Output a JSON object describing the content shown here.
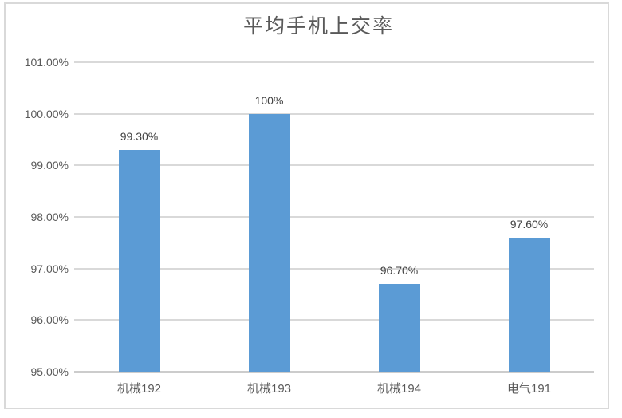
{
  "chart": {
    "title": "平均手机上交率"
  },
  "chart_data": {
    "type": "bar",
    "title": "平均手机上交率",
    "categories": [
      "机械192",
      "机械193",
      "机械194",
      "电气191"
    ],
    "values": [
      99.3,
      100,
      96.7,
      97.6
    ],
    "data_labels": [
      "99.30%",
      "100%",
      "96.70%",
      "97.60%"
    ],
    "xlabel": "",
    "ylabel": "",
    "ylim": [
      95,
      101
    ],
    "ytick_interval": 1,
    "ytick_labels": [
      "95.00%",
      "96.00%",
      "97.00%",
      "98.00%",
      "99.00%",
      "100.00%",
      "101.00%"
    ],
    "grid": true,
    "legend_position": "none"
  },
  "colors": {
    "bar": "#5B9BD5",
    "gridline": "#D9D9D9",
    "axis_line": "#CCCCCC",
    "frame_border": "#D9D9D9",
    "title_text": "#595959",
    "tick_text": "#595959",
    "data_label_text": "#404040",
    "background": "#FFFFFF"
  }
}
